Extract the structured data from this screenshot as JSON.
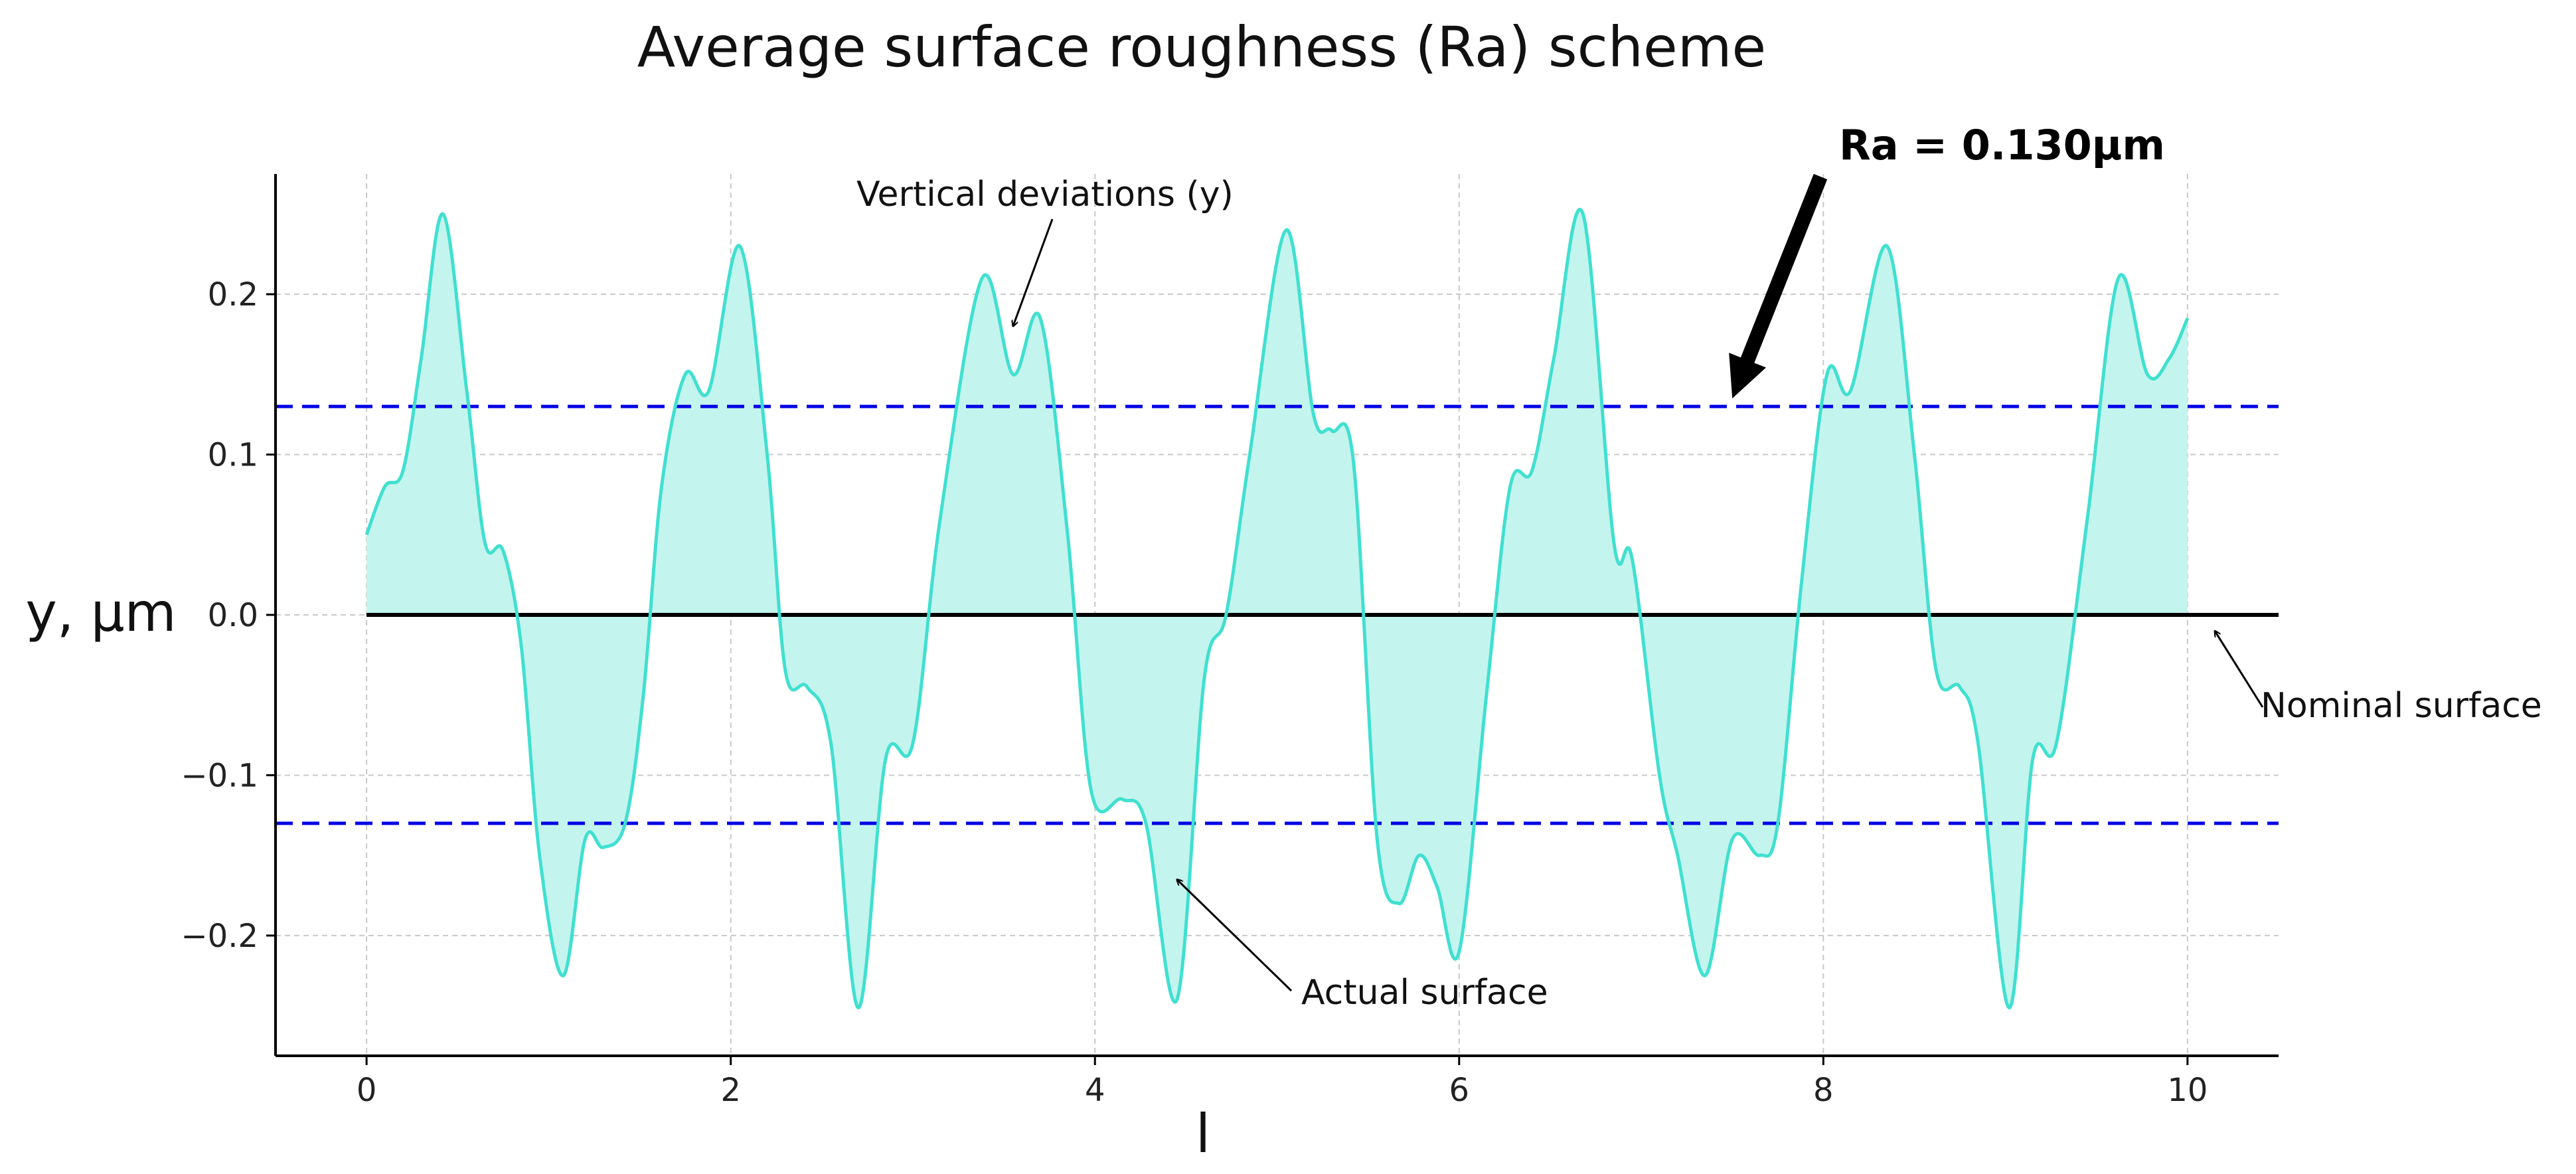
{
  "chart_data": {
    "type": "area",
    "title": "Average surface roughness (Ra) scheme",
    "xlabel": "l",
    "ylabel": "y,  μm",
    "xlim": [
      -0.5,
      10.5
    ],
    "ylim": [
      -0.275,
      0.275
    ],
    "xticks": [
      0,
      2,
      4,
      6,
      8,
      10
    ],
    "xtick_labels": [
      "0",
      "2",
      "4",
      "6",
      "8",
      "10"
    ],
    "yticks": [
      0.2,
      0.1,
      0.0,
      -0.1,
      -0.2
    ],
    "ytick_labels": [
      "0.2",
      "0.1",
      "0.0",
      "−0.1",
      "−0.2"
    ],
    "grid": true,
    "series": [
      {
        "name": "Actual surface",
        "color": "#40E0D0",
        "fill_color": "#C4F4EE",
        "x": [
          0,
          0.1,
          0.2,
          0.3,
          0.42,
          0.55,
          0.65,
          0.75,
          0.85,
          0.95,
          1.08,
          1.2,
          1.3,
          1.42,
          1.52,
          1.62,
          1.75,
          1.88,
          2.05,
          2.2,
          2.3,
          2.42,
          2.55,
          2.7,
          2.85,
          3.0,
          3.15,
          3.38,
          3.55,
          3.7,
          3.85,
          3.98,
          4.15,
          4.28,
          4.45,
          4.6,
          4.72,
          4.85,
          5.05,
          5.2,
          5.3,
          5.42,
          5.55,
          5.67,
          5.78,
          5.88,
          6.0,
          6.15,
          6.28,
          6.4,
          6.52,
          6.68,
          6.85,
          6.95,
          7.1,
          7.2,
          7.35,
          7.5,
          7.65,
          7.75,
          7.88,
          8.02,
          8.15,
          8.35,
          8.5,
          8.62,
          8.75,
          8.85,
          9.02,
          9.15,
          9.28,
          9.45,
          9.62,
          9.78,
          9.9,
          10.0
        ],
        "y": [
          0.05,
          0.08,
          0.09,
          0.16,
          0.25,
          0.14,
          0.045,
          0.04,
          -0.02,
          -0.15,
          -0.225,
          -0.14,
          -0.145,
          -0.13,
          -0.05,
          0.08,
          0.15,
          0.14,
          0.23,
          0.1,
          -0.035,
          -0.045,
          -0.08,
          -0.245,
          -0.09,
          -0.08,
          0.06,
          0.21,
          0.15,
          0.185,
          0.05,
          -0.11,
          -0.115,
          -0.13,
          -0.24,
          -0.04,
          0.0,
          0.1,
          0.24,
          0.125,
          0.115,
          0.095,
          -0.14,
          -0.18,
          -0.15,
          -0.17,
          -0.21,
          -0.05,
          0.08,
          0.09,
          0.16,
          0.25,
          0.045,
          0.035,
          -0.1,
          -0.15,
          -0.225,
          -0.14,
          -0.15,
          -0.13,
          0.02,
          0.15,
          0.14,
          0.23,
          0.1,
          -0.035,
          -0.045,
          -0.08,
          -0.245,
          -0.09,
          -0.08,
          0.06,
          0.21,
          0.15,
          0.16,
          0.185
        ]
      }
    ],
    "nominal_line": {
      "y": 0.0,
      "color": "#000000"
    },
    "ra_lines": {
      "values": [
        0.13,
        -0.13
      ],
      "color": "#0000E6",
      "style": "dashed"
    },
    "annotations": [
      {
        "text": "Ra = 0.130μm",
        "target_x": 7.5,
        "target_y": 0.135
      },
      {
        "text": "Vertical deviations (y)",
        "target_x": 3.55,
        "target_y": 0.18
      },
      {
        "text": "Actual surface",
        "target_x": 4.45,
        "target_y": -0.165
      },
      {
        "text": "Nominal surface",
        "target_x": 10.15,
        "target_y": -0.01
      }
    ]
  }
}
